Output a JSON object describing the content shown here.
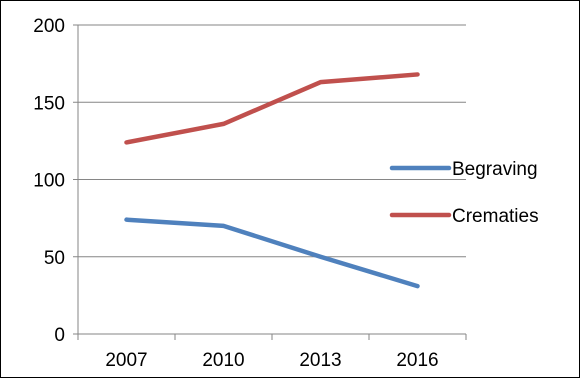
{
  "chart_data": {
    "type": "line",
    "title": "",
    "xlabel": "",
    "ylabel": "",
    "categories": [
      "2007",
      "2010",
      "2013",
      "2016"
    ],
    "ylim": [
      0,
      200
    ],
    "yticks": [
      "0",
      "50",
      "100",
      "150",
      "200"
    ],
    "grid": "horizontal",
    "legend_position": "right",
    "series": [
      {
        "name": "Begraving",
        "color": "#4F81BD",
        "values": [
          74,
          70,
          50,
          31
        ]
      },
      {
        "name": "Crematies",
        "color": "#C0504D",
        "values": [
          124,
          136,
          163,
          168
        ]
      }
    ]
  }
}
